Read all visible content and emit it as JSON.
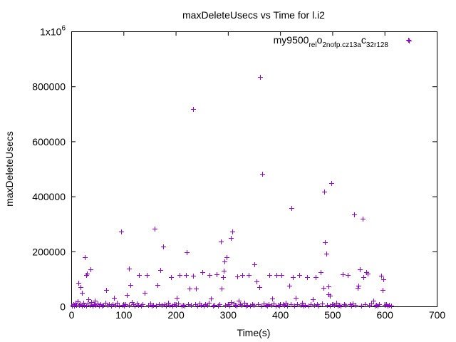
{
  "chart_data": {
    "type": "scatter",
    "title": "maxDeleteUsecs vs Time for l.i2",
    "xlabel": "Time(s)",
    "ylabel": "maxDeleteUsecs",
    "xlim": [
      0,
      700
    ],
    "ylim": [
      0,
      1000000
    ],
    "x_ticks": [
      "0",
      "100",
      "200",
      "300",
      "400",
      "500",
      "600",
      "700"
    ],
    "y_ticks": [
      "0",
      "200000",
      "400000",
      "600000",
      "800000"
    ],
    "y_top_tick": {
      "base": "1x10",
      "exponent": "6"
    },
    "legend": {
      "position": "top-right",
      "parts": [
        {
          "text": "my9500",
          "sub": false
        },
        {
          "text": "rel",
          "sub": true
        },
        {
          "text": "o",
          "sub": false
        },
        {
          "text": "2nofp.cz13a",
          "sub": true
        },
        {
          "text": "c",
          "sub": false
        },
        {
          "text": "32r128",
          "sub": true
        }
      ]
    },
    "grid": false,
    "series": [
      {
        "color": "#9400d3",
        "marker": "+",
        "points": [
          [
            14,
            85000
          ],
          [
            18,
            70000
          ],
          [
            21,
            50000
          ],
          [
            26,
            178000
          ],
          [
            28,
            113000
          ],
          [
            30,
            118000
          ],
          [
            33,
            25000
          ],
          [
            37,
            135000
          ],
          [
            45,
            22000
          ],
          [
            67,
            60000
          ],
          [
            82,
            30000
          ],
          [
            95,
            272000
          ],
          [
            107,
            42000
          ],
          [
            111,
            138000
          ],
          [
            113,
            77000
          ],
          [
            116,
            15000
          ],
          [
            130,
            113000
          ],
          [
            141,
            50000
          ],
          [
            145,
            115000
          ],
          [
            159,
            283000
          ],
          [
            165,
            78000
          ],
          [
            170,
            133000
          ],
          [
            176,
            218000
          ],
          [
            191,
            105000
          ],
          [
            202,
            30000
          ],
          [
            208,
            115000
          ],
          [
            220,
            115000
          ],
          [
            221,
            196000
          ],
          [
            226,
            65000
          ],
          [
            233,
            112000
          ],
          [
            234,
            718000
          ],
          [
            239,
            65000
          ],
          [
            251,
            125000
          ],
          [
            265,
            115000
          ],
          [
            268,
            28000
          ],
          [
            278,
            117000
          ],
          [
            287,
            237000
          ],
          [
            288,
            65000
          ],
          [
            290,
            105000
          ],
          [
            292,
            130000
          ],
          [
            293,
            163000
          ],
          [
            297,
            180000
          ],
          [
            305,
            15000
          ],
          [
            306,
            250000
          ],
          [
            308,
            273000
          ],
          [
            318,
            110000
          ],
          [
            320,
            22000
          ],
          [
            328,
            115000
          ],
          [
            340,
            115000
          ],
          [
            351,
            153000
          ],
          [
            355,
            90000
          ],
          [
            360,
            70000
          ],
          [
            362,
            835000
          ],
          [
            366,
            483000
          ],
          [
            380,
            115000
          ],
          [
            385,
            28000
          ],
          [
            393,
            115000
          ],
          [
            402,
            115000
          ],
          [
            417,
            75000
          ],
          [
            422,
            358000
          ],
          [
            424,
            105000
          ],
          [
            430,
            30000
          ],
          [
            436,
            113000
          ],
          [
            452,
            105000
          ],
          [
            462,
            25000
          ],
          [
            468,
            107000
          ],
          [
            478,
            125000
          ],
          [
            483,
            68000
          ],
          [
            485,
            418000
          ],
          [
            486,
            232000
          ],
          [
            489,
            192000
          ],
          [
            492,
            72000
          ],
          [
            493,
            45000
          ],
          [
            496,
            38000
          ],
          [
            498,
            447000
          ],
          [
            520,
            117000
          ],
          [
            530,
            115000
          ],
          [
            542,
            335000
          ],
          [
            548,
            68000
          ],
          [
            550,
            75000
          ],
          [
            553,
            135000
          ],
          [
            558,
            318000
          ],
          [
            560,
            105000
          ],
          [
            565,
            125000
          ],
          [
            568,
            120000
          ],
          [
            578,
            20000
          ],
          [
            594,
            112000
          ],
          [
            596,
            60000
          ],
          [
            598,
            98000
          ],
          [
            646,
            970000
          ],
          [
            2,
            3000
          ],
          [
            4,
            8000
          ],
          [
            6,
            2000
          ],
          [
            8,
            12000
          ],
          [
            10,
            5000
          ],
          [
            12,
            18000
          ],
          [
            15,
            4000
          ],
          [
            17,
            9000
          ],
          [
            20,
            2000
          ],
          [
            23,
            14000
          ],
          [
            25,
            6000
          ],
          [
            29,
            3000
          ],
          [
            32,
            10000
          ],
          [
            35,
            5000
          ],
          [
            38,
            15000
          ],
          [
            41,
            2000
          ],
          [
            43,
            7000
          ],
          [
            47,
            4000
          ],
          [
            50,
            11000
          ],
          [
            53,
            3000
          ],
          [
            56,
            8000
          ],
          [
            59,
            2000
          ],
          [
            62,
            6000
          ],
          [
            65,
            13000
          ],
          [
            70,
            4000
          ],
          [
            73,
            9000
          ],
          [
            76,
            2000
          ],
          [
            79,
            7000
          ],
          [
            85,
            5000
          ],
          [
            88,
            12000
          ],
          [
            91,
            3000
          ],
          [
            98,
            6000
          ],
          [
            101,
            2000
          ],
          [
            104,
            9000
          ],
          [
            110,
            4000
          ],
          [
            119,
            7000
          ],
          [
            122,
            3000
          ],
          [
            125,
            10000
          ],
          [
            128,
            5000
          ],
          [
            134,
            2000
          ],
          [
            137,
            8000
          ],
          [
            148,
            4000
          ],
          [
            151,
            11000
          ],
          [
            154,
            3000
          ],
          [
            157,
            6000
          ],
          [
            162,
            2000
          ],
          [
            168,
            9000
          ],
          [
            173,
            4000
          ],
          [
            179,
            7000
          ],
          [
            182,
            3000
          ],
          [
            185,
            12000
          ],
          [
            188,
            5000
          ],
          [
            194,
            2000
          ],
          [
            197,
            8000
          ],
          [
            200,
            4000
          ],
          [
            205,
            10000
          ],
          [
            211,
            3000
          ],
          [
            214,
            6000
          ],
          [
            217,
            2000
          ],
          [
            224,
            9000
          ],
          [
            229,
            4000
          ],
          [
            237,
            7000
          ],
          [
            242,
            3000
          ],
          [
            245,
            11000
          ],
          [
            248,
            5000
          ],
          [
            254,
            2000
          ],
          [
            257,
            8000
          ],
          [
            260,
            4000
          ],
          [
            263,
            13000
          ],
          [
            271,
            3000
          ],
          [
            274,
            6000
          ],
          [
            281,
            2000
          ],
          [
            284,
            9000
          ],
          [
            295,
            4000
          ],
          [
            300,
            7000
          ],
          [
            303,
            3000
          ],
          [
            311,
            10000
          ],
          [
            314,
            5000
          ],
          [
            316,
            2000
          ],
          [
            323,
            8000
          ],
          [
            326,
            4000
          ],
          [
            331,
            12000
          ],
          [
            334,
            3000
          ],
          [
            337,
            6000
          ],
          [
            343,
            2000
          ],
          [
            346,
            9000
          ],
          [
            349,
            4000
          ],
          [
            357,
            7000
          ],
          [
            364,
            3000
          ],
          [
            369,
            11000
          ],
          [
            372,
            5000
          ],
          [
            375,
            2000
          ],
          [
            378,
            8000
          ],
          [
            383,
            4000
          ],
          [
            388,
            10000
          ],
          [
            391,
            3000
          ],
          [
            396,
            6000
          ],
          [
            399,
            2000
          ],
          [
            405,
            9000
          ],
          [
            408,
            4000
          ],
          [
            411,
            14000
          ],
          [
            414,
            3000
          ],
          [
            420,
            7000
          ],
          [
            427,
            2000
          ],
          [
            433,
            8000
          ],
          [
            439,
            4000
          ],
          [
            442,
            12000
          ],
          [
            445,
            3000
          ],
          [
            448,
            6000
          ],
          [
            455,
            2000
          ],
          [
            458,
            9000
          ],
          [
            465,
            4000
          ],
          [
            471,
            7000
          ],
          [
            474,
            3000
          ],
          [
            480,
            10000
          ],
          [
            490,
            5000
          ],
          [
            495,
            2000
          ],
          [
            501,
            8000
          ],
          [
            504,
            4000
          ],
          [
            507,
            13000
          ],
          [
            510,
            3000
          ],
          [
            513,
            6000
          ],
          [
            516,
            2000
          ],
          [
            523,
            9000
          ],
          [
            526,
            4000
          ],
          [
            533,
            7000
          ],
          [
            536,
            3000
          ],
          [
            539,
            11000
          ],
          [
            545,
            5000
          ],
          [
            555,
            2000
          ],
          [
            562,
            8000
          ],
          [
            571,
            4000
          ],
          [
            574,
            10000
          ],
          [
            581,
            3000
          ],
          [
            584,
            6000
          ],
          [
            587,
            2000
          ],
          [
            590,
            9000
          ],
          [
            600,
            4000
          ],
          [
            603,
            7000
          ],
          [
            606,
            3000
          ],
          [
            609,
            5000
          ],
          [
            612,
            2000
          ]
        ]
      }
    ]
  }
}
